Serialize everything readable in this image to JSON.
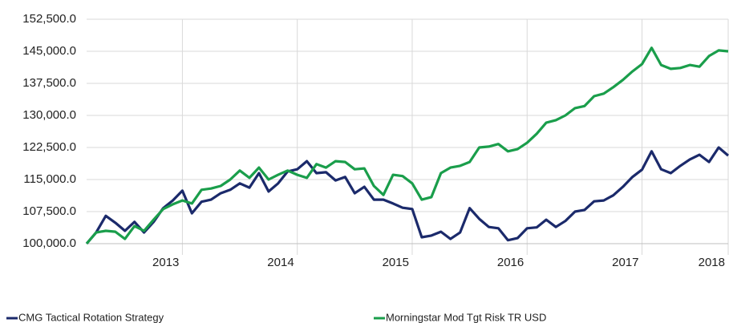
{
  "chart_data": {
    "type": "line",
    "categories": [
      null,
      null,
      null,
      null,
      null,
      null,
      null,
      null,
      null,
      null,
      "2013",
      null,
      null,
      null,
      null,
      null,
      null,
      null,
      null,
      null,
      null,
      null,
      "2014",
      null,
      null,
      null,
      null,
      null,
      null,
      null,
      null,
      null,
      null,
      null,
      "2015",
      null,
      null,
      null,
      null,
      null,
      null,
      null,
      null,
      null,
      null,
      null,
      "2016",
      null,
      null,
      null,
      null,
      null,
      null,
      null,
      null,
      null,
      null,
      null,
      "2017",
      null,
      null,
      null,
      null,
      null,
      null,
      null,
      null,
      "2018"
    ],
    "series": [
      {
        "name": "CMG Tactical Rotation Strategy",
        "color": "#1b2a6b",
        "values": [
          100000,
          102600,
          106500,
          104900,
          103000,
          105100,
          102600,
          105100,
          108300,
          110100,
          112400,
          107100,
          109800,
          110300,
          111800,
          112600,
          114100,
          113100,
          116500,
          112200,
          114100,
          116900,
          117400,
          119300,
          116500,
          116700,
          114800,
          115600,
          111800,
          113300,
          110300,
          110300,
          109400,
          108400,
          108100,
          101500,
          101900,
          102800,
          101100,
          102600,
          108300,
          105800,
          103900,
          103600,
          100800,
          101300,
          103600,
          103800,
          105600,
          103900,
          105300,
          107500,
          107900,
          109900,
          110100,
          111300,
          113300,
          115600,
          117300,
          121600,
          117400,
          116500,
          118200,
          119700,
          120800,
          119100,
          122500,
          120600
        ]
      },
      {
        "name": "Morningstar Mod Tgt Risk TR USD",
        "color": "#1a9e4b",
        "values": [
          100000,
          102600,
          103000,
          102800,
          101100,
          104100,
          103000,
          105600,
          108100,
          109200,
          110100,
          109400,
          112600,
          112900,
          113500,
          115000,
          117100,
          115400,
          117800,
          115000,
          116100,
          117100,
          116100,
          115400,
          118600,
          117800,
          119300,
          119100,
          117400,
          117600,
          113500,
          111400,
          116100,
          115800,
          114100,
          110300,
          110900,
          116500,
          117800,
          118200,
          119100,
          122500,
          122700,
          123300,
          121600,
          122100,
          123600,
          125700,
          128300,
          128900,
          130000,
          131700,
          132200,
          134500,
          135100,
          136600,
          138300,
          140300,
          142000,
          145800,
          141800,
          140900,
          141100,
          141800,
          141400,
          143900,
          145200,
          145000
        ]
      }
    ],
    "ylim": [
      100000,
      152500
    ],
    "yticks": [
      {
        "value": 100000,
        "label": "100,000.0"
      },
      {
        "value": 107500,
        "label": "107,500.0"
      },
      {
        "value": 115000,
        "label": "115,000.0"
      },
      {
        "value": 122500,
        "label": "122,500.0"
      },
      {
        "value": 130000,
        "label": "130,000.0"
      },
      {
        "value": 137500,
        "label": "137,500.0"
      },
      {
        "value": 145000,
        "label": "145,000.0"
      },
      {
        "value": 152500,
        "label": "152,500.0"
      }
    ],
    "grid": true
  }
}
